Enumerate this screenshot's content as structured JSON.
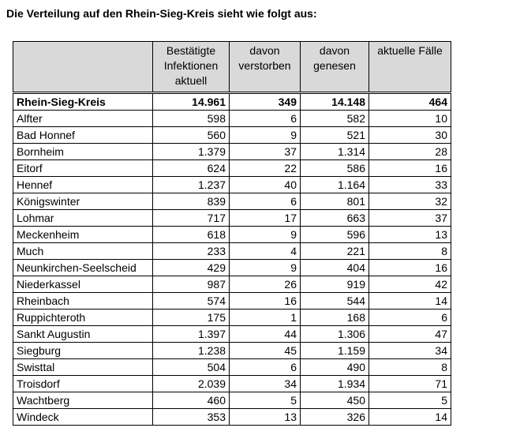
{
  "heading": "Die Verteilung auf den Rhein-Sieg-Kreis sieht wie folgt aus:",
  "table": {
    "headers": [
      "",
      "Bestätigte Infektionen aktuell",
      "davon verstorben",
      "davon genesen",
      "aktuelle Fälle"
    ],
    "total": {
      "name": "Rhein-Sieg-Kreis",
      "infektionen": "14.961",
      "verstorben": "349",
      "genesen": "14.148",
      "aktuell": "464"
    },
    "rows": [
      {
        "name": "Alfter",
        "infektionen": "598",
        "verstorben": "6",
        "genesen": "582",
        "aktuell": "10"
      },
      {
        "name": "Bad Honnef",
        "infektionen": "560",
        "verstorben": "9",
        "genesen": "521",
        "aktuell": "30"
      },
      {
        "name": "Bornheim",
        "infektionen": "1.379",
        "verstorben": "37",
        "genesen": "1.314",
        "aktuell": "28"
      },
      {
        "name": "Eitorf",
        "infektionen": "624",
        "verstorben": "22",
        "genesen": "586",
        "aktuell": "16"
      },
      {
        "name": "Hennef",
        "infektionen": "1.237",
        "verstorben": "40",
        "genesen": "1.164",
        "aktuell": "33"
      },
      {
        "name": "Königswinter",
        "infektionen": "839",
        "verstorben": "6",
        "genesen": "801",
        "aktuell": "32"
      },
      {
        "name": "Lohmar",
        "infektionen": "717",
        "verstorben": "17",
        "genesen": "663",
        "aktuell": "37"
      },
      {
        "name": "Meckenheim",
        "infektionen": "618",
        "verstorben": "9",
        "genesen": "596",
        "aktuell": "13"
      },
      {
        "name": "Much",
        "infektionen": "233",
        "verstorben": "4",
        "genesen": "221",
        "aktuell": "8"
      },
      {
        "name": "Neunkirchen-Seelscheid",
        "infektionen": "429",
        "verstorben": "9",
        "genesen": "404",
        "aktuell": "16"
      },
      {
        "name": "Niederkassel",
        "infektionen": "987",
        "verstorben": "26",
        "genesen": "919",
        "aktuell": "42"
      },
      {
        "name": "Rheinbach",
        "infektionen": "574",
        "verstorben": "16",
        "genesen": "544",
        "aktuell": "14"
      },
      {
        "name": "Ruppichteroth",
        "infektionen": "175",
        "verstorben": "1",
        "genesen": "168",
        "aktuell": "6"
      },
      {
        "name": "Sankt Augustin",
        "infektionen": "1.397",
        "verstorben": "44",
        "genesen": "1.306",
        "aktuell": "47"
      },
      {
        "name": "Siegburg",
        "infektionen": "1.238",
        "verstorben": "45",
        "genesen": "1.159",
        "aktuell": "34"
      },
      {
        "name": "Swisttal",
        "infektionen": "504",
        "verstorben": "6",
        "genesen": "490",
        "aktuell": "8"
      },
      {
        "name": "Troisdorf",
        "infektionen": "2.039",
        "verstorben": "34",
        "genesen": "1.934",
        "aktuell": "71"
      },
      {
        "name": "Wachtberg",
        "infektionen": "460",
        "verstorben": "5",
        "genesen": "450",
        "aktuell": "5"
      },
      {
        "name": "Windeck",
        "infektionen": "353",
        "verstorben": "13",
        "genesen": "326",
        "aktuell": "14"
      }
    ]
  }
}
